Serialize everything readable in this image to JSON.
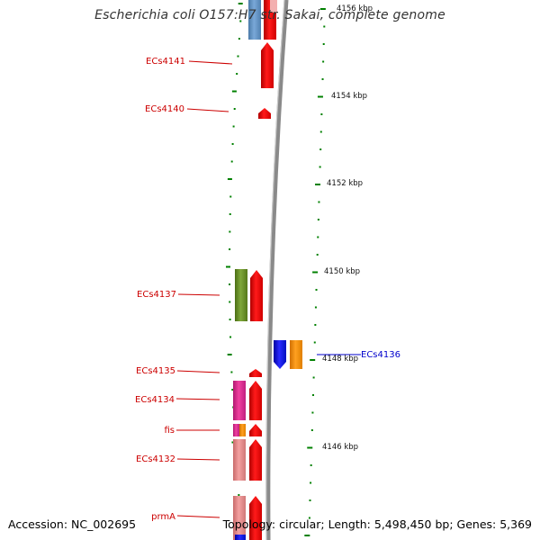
{
  "title": "Escherichia coli O157:H7 str. Sakai, complete genome",
  "accession": "Accession: NC_002695",
  "summary": "Topology: circular; Length: 5,498,450 bp; Genes: 5,369",
  "colors": {
    "forward_gene": "#ff0000",
    "reverse_label": "#cc0000",
    "forward_label": "#0000cc",
    "tick": "#008000",
    "backbone": "#888888"
  },
  "scale_ticks": [
    "4156 kbp",
    "4154 kbp",
    "4152 kbp",
    "4150 kbp",
    "4148 kbp",
    "4146 kbp"
  ],
  "gene_labels_left": [
    "ECs4141",
    "ECs4140",
    "ECs4137",
    "ECs4135",
    "ECs4134",
    "fis",
    "ECs4132",
    "prmA"
  ],
  "gene_labels_right": [
    "ECs4136"
  ]
}
